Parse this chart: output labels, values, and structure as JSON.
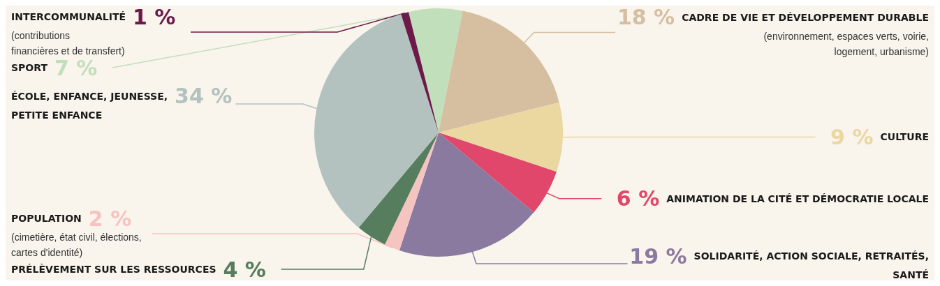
{
  "chart_data": {
    "type": "pie",
    "categories": [
      "SPORT",
      "CADRE DE VIE ET DÉVELOPPEMENT DURABLE\n(environnement, espaces verts, voirie,\nlogement, urbanisme)",
      "CULTURE",
      "ANIMATION DE LA CITÉ ET DÉMOCRATIE LOCALE",
      "SOLIDARITÉ, ACTION SOCIALE, RETRAITÉS,\nSANTÉ",
      "POPULATION\n(cimetière, état civil, élections,\ncartes d'identité)",
      "PRÉLÈVEMENT SUR LES RESSOURCES",
      "ÉCOLE, ENFANCE, JEUNESSE,\nPETITE ENFANCE",
      "INTERCOMMUNALITÉ\n(contributions\nfinancières et de transfert)"
    ],
    "values": [
      7,
      18,
      9,
      6,
      19,
      2,
      4,
      34,
      1
    ],
    "value_labels": [
      "7 %",
      "18 %",
      "9 %",
      "6 %",
      "19 %",
      "2 %",
      "4 %",
      "34 %",
      "1 %"
    ],
    "colors": [
      "#c2dfbb",
      "#d6bfa1",
      "#ebd7a0",
      "#e0476a",
      "#8a7aa0",
      "#f6c4c0",
      "#567d5e",
      "#b3c2bf",
      "#6b1a4a"
    ],
    "legend": false
  }
}
